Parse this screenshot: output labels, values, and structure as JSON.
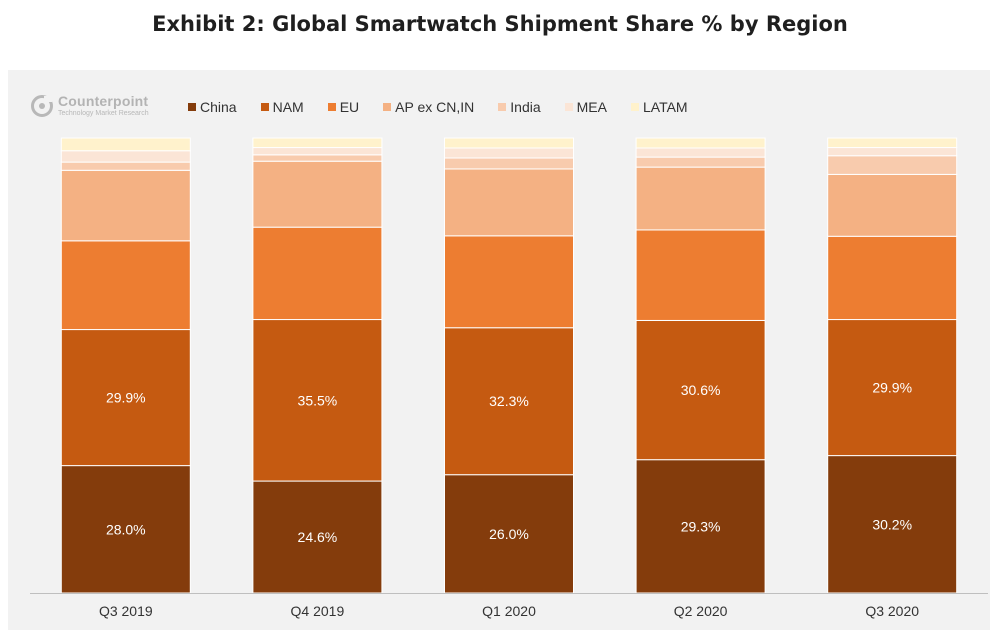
{
  "page": {
    "title": "Exhibit 2: Global Smartwatch Shipment Share % by Region"
  },
  "brand": {
    "name": "Counterpoint",
    "tagline": "Technology Market Research",
    "icon": "counterpoint-logo-icon",
    "color": "#b3b3b3"
  },
  "chart_data": {
    "type": "bar",
    "stacked": true,
    "title": "Exhibit 2: Global Smartwatch Shipment Share % by Region",
    "xlabel": "",
    "ylabel": "",
    "ylim": [
      0,
      100
    ],
    "grid": false,
    "legend_position": "top",
    "categories": [
      "Q3 2019",
      "Q4 2019",
      "Q1 2020",
      "Q2 2020",
      "Q3 2020"
    ],
    "series": [
      {
        "name": "China",
        "color": "#843c0c",
        "values": [
          28.0,
          24.6,
          26.0,
          29.3,
          30.2
        ],
        "show_labels": true
      },
      {
        "name": "NAM",
        "color": "#c55a11",
        "values": [
          29.9,
          35.5,
          32.3,
          30.6,
          29.9
        ],
        "show_labels": true
      },
      {
        "name": "EU",
        "color": "#ed7d31",
        "values": [
          19.5,
          20.3,
          20.2,
          19.9,
          18.3
        ],
        "show_labels": false
      },
      {
        "name": "AP ex CN,IN",
        "color": "#f4b183",
        "values": [
          15.5,
          14.5,
          14.7,
          13.8,
          13.6
        ],
        "show_labels": false
      },
      {
        "name": "India",
        "color": "#f8cbad",
        "values": [
          1.8,
          1.4,
          2.4,
          2.2,
          4.1
        ],
        "show_labels": false
      },
      {
        "name": "MEA",
        "color": "#fbe5d6",
        "values": [
          2.5,
          1.6,
          2.2,
          2.0,
          1.8
        ],
        "show_labels": false
      },
      {
        "name": "LATAM",
        "color": "#fff2cc",
        "values": [
          2.8,
          2.1,
          2.2,
          2.2,
          2.1
        ],
        "show_labels": false
      }
    ],
    "label_color": "#ffffff",
    "tick_color": "#333333",
    "axis_color": "#bfbfbf"
  }
}
